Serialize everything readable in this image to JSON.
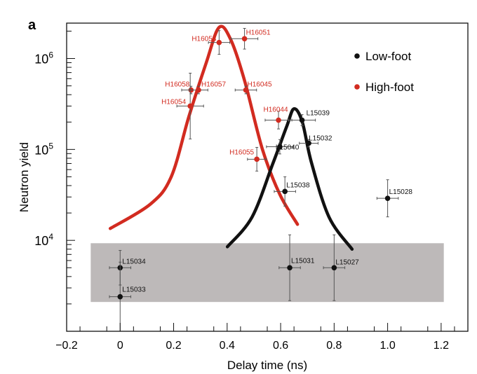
{
  "panel_label": "a",
  "chart_data": {
    "type": "scatter",
    "title": "",
    "xlabel": "Delay time (ns)",
    "ylabel": "Neutron yield",
    "xlim": [
      -0.2,
      1.3
    ],
    "ylim": [
      1000,
      2450000
    ],
    "yscale": "log",
    "x_ticks": [
      -0.2,
      0,
      0.2,
      0.4,
      0.6,
      0.8,
      1.0,
      1.2
    ],
    "x_tick_labels": [
      "−0.2",
      "0",
      "0.2",
      "0.4",
      "0.6",
      "0.8",
      "1.0",
      "1.2"
    ],
    "y_ticks": [
      10000,
      100000,
      1000000
    ],
    "y_tick_labels": [
      {
        "base": "10",
        "exp": "4"
      },
      {
        "base": "10",
        "exp": "5"
      },
      {
        "base": "10",
        "exp": "6"
      }
    ],
    "legend": {
      "placement": "top-right",
      "entries": [
        {
          "label": "Low-foot",
          "color": "#111111"
        },
        {
          "label": "High-foot",
          "color": "#d22b20"
        }
      ]
    },
    "series": [
      {
        "name": "High-foot",
        "color": "#d22b20",
        "points": [
          {
            "label": "H16053",
            "x": 0.37,
            "y": 1500000,
            "xerr": 0.04,
            "yerr_factor": 1.35
          },
          {
            "label": "H16051",
            "x": 0.465,
            "y": 1650000,
            "xerr": 0.05,
            "yerr_factor": 1.3
          },
          {
            "label": "H16058",
            "x": 0.265,
            "y": 450000,
            "xerr": 0.035,
            "yerr_factor": 1.1
          },
          {
            "label": "H16057",
            "x": 0.293,
            "y": 450000,
            "xerr": 0.035,
            "yerr_factor": 1.1
          },
          {
            "label": "H16045",
            "x": 0.47,
            "y": 450000,
            "xerr": 0.04,
            "yerr_factor": 1.1
          },
          {
            "label": "H16054",
            "x": 0.262,
            "y": 300000,
            "xerr": 0.05,
            "yerr_factor": 2.3
          },
          {
            "label": "H16044",
            "x": 0.592,
            "y": 210000,
            "xerr": 0.05,
            "yerr_factor": 1.25
          },
          {
            "label": "H16055",
            "x": 0.511,
            "y": 78000,
            "xerr": 0.035,
            "yerr_factor": 1.35
          }
        ]
      },
      {
        "name": "Low-foot",
        "color": "#111111",
        "points": [
          {
            "label": "L15039",
            "x": 0.68,
            "y": 210000,
            "xerr": 0.05,
            "yerr_factor": 1.15
          },
          {
            "label": "L15032",
            "x": 0.705,
            "y": 117000,
            "xerr": 0.035,
            "yerr_factor": 1.1
          },
          {
            "label": "L15040",
            "x": 0.597,
            "y": 107000,
            "xerr": 0.05,
            "yerr_factor": 1.2
          },
          {
            "label": "L15038",
            "x": 0.616,
            "y": 34500,
            "xerr": 0.04,
            "yerr_factor": 1.45
          },
          {
            "label": "L15028",
            "x": 1.0,
            "y": 29000,
            "xerr": 0.04,
            "yerr_factor": 1.6
          },
          {
            "label": "L15034",
            "x": 0.0,
            "y": 5000,
            "xerr": 0.04,
            "yerr_factor": 1.55
          },
          {
            "label": "L15033",
            "x": 0.0,
            "y": 2400,
            "xerr": 0.04,
            "yerr_factor": 2.4
          },
          {
            "label": "L15031",
            "x": 0.634,
            "y": 5000,
            "xerr": 0.04,
            "yerr_factor": 2.3
          },
          {
            "label": "L15027",
            "x": 0.8,
            "y": 5000,
            "xerr": 0.04,
            "yerr_factor": 2.3
          }
        ]
      }
    ],
    "curves": [
      {
        "name": "High-foot fit",
        "color": "#d22b20",
        "x": [
          -0.037,
          0.113,
          0.191,
          0.257,
          0.322,
          0.37,
          0.414,
          0.466,
          0.532,
          0.597,
          0.663
        ],
        "y": [
          13500,
          25000,
          50000,
          230000,
          900000,
          2200000,
          1600000,
          560000,
          100000,
          32000,
          15000
        ]
      },
      {
        "name": "Low-foot fit",
        "color": "#111111",
        "x": [
          0.401,
          0.493,
          0.571,
          0.623,
          0.65,
          0.681,
          0.715,
          0.781,
          0.867
        ],
        "y": [
          8500,
          18000,
          70000,
          180000,
          280000,
          200000,
          72000,
          18000,
          8000
        ]
      }
    ],
    "shaded_band": {
      "x": [
        -0.11,
        1.21
      ],
      "y": [
        2100,
        9300
      ],
      "color": "#bdb9b9"
    }
  }
}
